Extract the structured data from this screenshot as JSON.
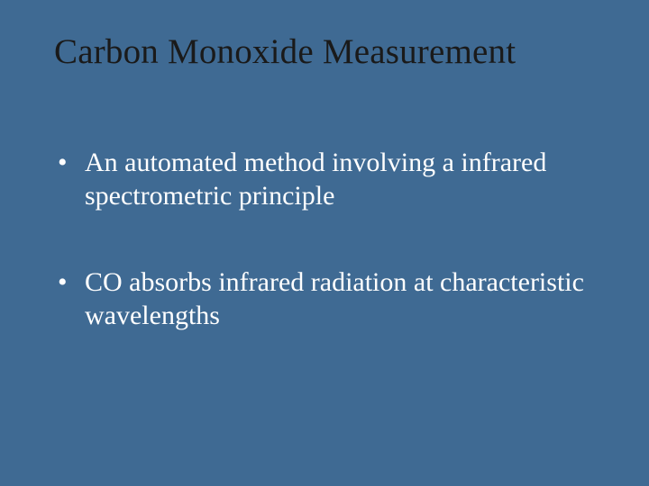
{
  "slide": {
    "background_color": "#3f6a93",
    "text_color": "#ffffff",
    "title_color": "#1a1a1a",
    "title": "Carbon Monoxide Measurement",
    "bullets": [
      "An automated method involving a infrared spectrometric principle",
      "CO absorbs infrared radiation at characteristic wavelengths"
    ]
  }
}
